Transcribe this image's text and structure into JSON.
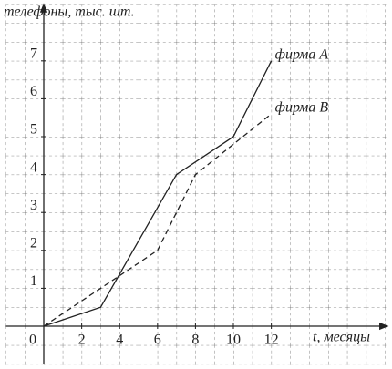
{
  "chart_data": {
    "type": "line",
    "ylabel": "телефоны, тыс. шт.",
    "xlabel": "t, месяцы",
    "series": [
      {
        "name": "фирма A",
        "color": "#222222",
        "dash": false,
        "x": [
          0,
          3,
          7,
          10,
          12
        ],
        "values": [
          0,
          0.5,
          4,
          5,
          7
        ]
      },
      {
        "name": "фирма B",
        "color": "#222222",
        "dash": true,
        "x": [
          0,
          3,
          6,
          8,
          12
        ],
        "values": [
          0,
          1,
          2,
          4,
          5.6
        ]
      }
    ],
    "xlim": [
      -2,
      18
    ],
    "ylim": [
      -1,
      8.5
    ],
    "xticks": [
      0,
      2,
      4,
      6,
      8,
      10,
      12
    ],
    "yticks": [
      1,
      2,
      3,
      4,
      5,
      6,
      7
    ],
    "grid": true
  }
}
